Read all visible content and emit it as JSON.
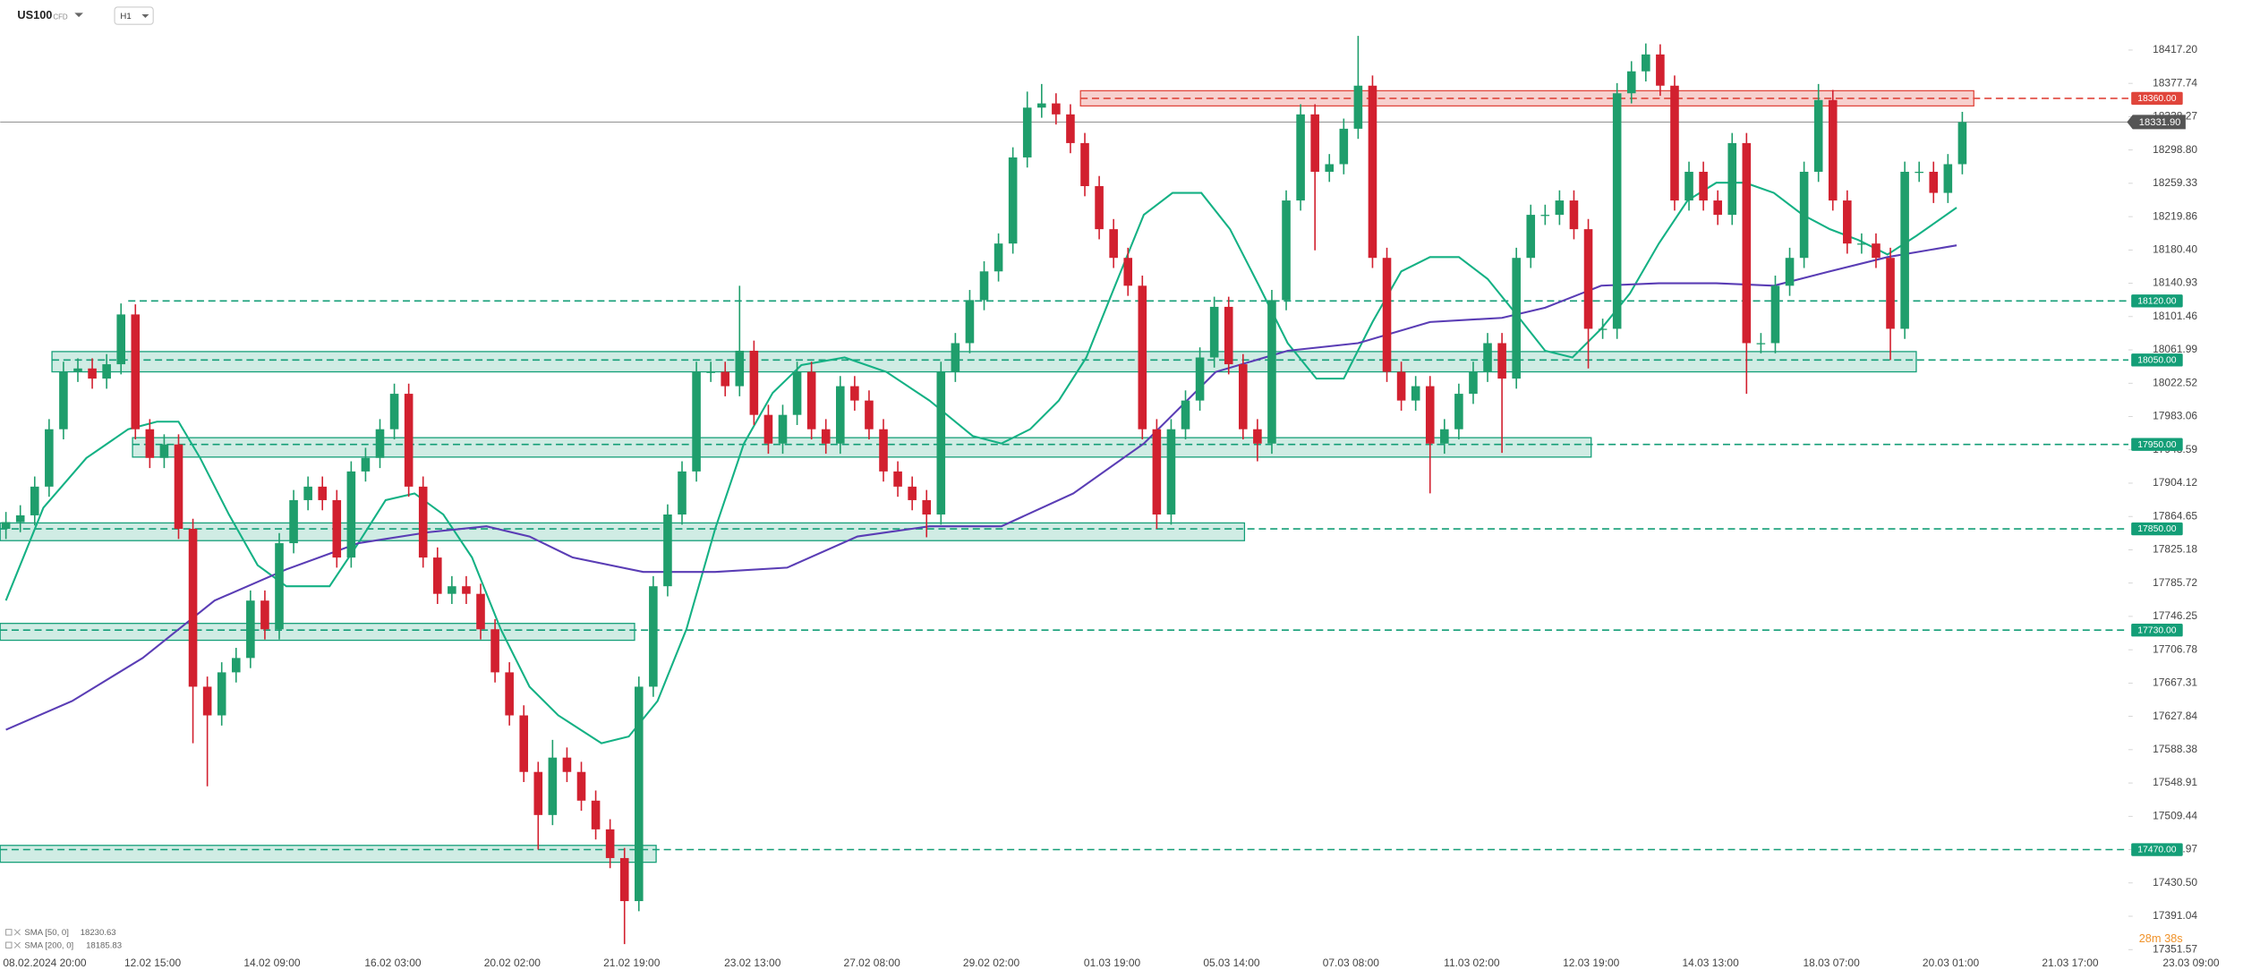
{
  "header": {
    "symbol": "US100",
    "instrument_type": "CFD",
    "timeframe": "H1"
  },
  "countdown": "28m 38s",
  "chart_data": {
    "type": "candlestick",
    "up_color": "#1f9e6c",
    "down_color": "#d2202f",
    "xlim": [
      -0.4,
      155.5
    ],
    "ylim": [
      17345,
      18476.5
    ],
    "xticks": [
      {
        "value": 1.9,
        "label": "08.02.2024 20:00"
      },
      {
        "value": 10.2,
        "label": "12.02 15:00"
      },
      {
        "value": 18.5,
        "label": "14.02 09:00"
      },
      {
        "value": 26.9,
        "label": "16.02 03:00"
      },
      {
        "value": 35.2,
        "label": "20.02 02:00"
      },
      {
        "value": 43.5,
        "label": "21.02 19:00"
      },
      {
        "value": 51.9,
        "label": "23.02 13:00"
      },
      {
        "value": 60.2,
        "label": "27.02 08:00"
      },
      {
        "value": 68.5,
        "label": "29.02 02:00"
      },
      {
        "value": 76.9,
        "label": "01.03 19:00"
      },
      {
        "value": 85.2,
        "label": "05.03 14:00"
      },
      {
        "value": 93.5,
        "label": "07.03 08:00"
      },
      {
        "value": 101.9,
        "label": "11.03 02:00"
      },
      {
        "value": 110.2,
        "label": "12.03 19:00"
      },
      {
        "value": 118.5,
        "label": "14.03 13:00"
      },
      {
        "value": 126.9,
        "label": "18.03 07:00"
      },
      {
        "value": 135.2,
        "label": "20.03 01:00"
      },
      {
        "value": 143.5,
        "label": "21.03 17:00"
      },
      {
        "value": 151.9,
        "label": "23.03 09:00"
      }
    ],
    "yticks": [
      {
        "value": 18417.2,
        "label": "18417.20"
      },
      18377.74,
      18338.27,
      {
        "value": 18298.8,
        "label": "18298.80"
      },
      18259.33,
      18219.86,
      {
        "value": 18180.4,
        "label": "18180.40"
      },
      18140.93,
      18101.46,
      18061.99,
      18022.52,
      17983.06,
      17943.59,
      17904.12,
      17864.65,
      17825.18,
      17785.72,
      17746.25,
      17706.78,
      17667.31,
      17627.84,
      17588.38,
      17548.91,
      17509.44,
      17469.97,
      {
        "value": 17430.5,
        "label": "17430.50"
      },
      17391.04,
      17351.57
    ],
    "open": [
      17850,
      17858,
      17866,
      17900,
      17968,
      18036,
      18040,
      18028,
      18045,
      18104,
      17968,
      17934,
      17950,
      17850,
      17663,
      17629,
      17680,
      17697,
      17765,
      17731,
      17833,
      17884,
      17900,
      17884,
      17816,
      17918,
      17934,
      17968,
      18010,
      17900,
      17816,
      17773,
      17782,
      17773,
      17731,
      17680,
      17629,
      17562,
      17511,
      17579,
      17562,
      17528,
      17494,
      17460,
      17409,
      17663,
      17782,
      17867,
      17918,
      18036,
      18036,
      18019,
      18061,
      17985,
      17951,
      17985,
      18036,
      17968,
      17951,
      18019,
      18002,
      17968,
      17918,
      17900,
      17884,
      17867,
      18036,
      18070,
      18121,
      18155,
      18188,
      18290,
      18349,
      18354,
      18341,
      18307,
      18256,
      18205,
      18171,
      18138,
      17968,
      17867,
      17968,
      18002,
      18053,
      18113,
      18045,
      17968,
      17951,
      18121,
      18239,
      18341,
      18273,
      18282,
      18324,
      18375,
      18171,
      18036,
      18002,
      18019,
      17951,
      17968,
      18010,
      18036,
      18070,
      18028,
      18171,
      18222,
      18222,
      18239,
      18205,
      18087,
      18087,
      18366,
      18392,
      18412,
      18375,
      18239,
      18273,
      18239,
      18222,
      18307,
      18070,
      18070,
      18138,
      18171,
      18273,
      18358,
      18239,
      18188,
      18188,
      18171,
      18087,
      18273,
      18273,
      18248,
      18282
    ],
    "high": [
      17870,
      17878,
      17912,
      17980,
      18048,
      18052,
      18052,
      18057,
      18117,
      18116,
      17980,
      17962,
      17962,
      17862,
      17675,
      17692,
      17709,
      17777,
      17777,
      17845,
      17896,
      17912,
      17912,
      17896,
      17930,
      17946,
      17980,
      18022,
      18022,
      17912,
      17828,
      17794,
      17794,
      17785,
      17743,
      17692,
      17641,
      17574,
      17600,
      17591,
      17574,
      17540,
      17506,
      17472,
      17675,
      17794,
      17879,
      17930,
      18048,
      18048,
      18048,
      18138,
      18073,
      17997,
      17997,
      18048,
      18048,
      17980,
      18031,
      18031,
      18014,
      17980,
      17930,
      17912,
      17896,
      18048,
      18082,
      18133,
      18167,
      18200,
      18302,
      18368,
      18377,
      18366,
      18353,
      18319,
      18268,
      18217,
      18183,
      18150,
      17980,
      17980,
      18014,
      18065,
      18125,
      18125,
      18057,
      17980,
      18133,
      18251,
      18353,
      18353,
      18294,
      18336,
      18434,
      18387,
      18183,
      18048,
      18031,
      18031,
      17980,
      18022,
      18048,
      18082,
      18082,
      18183,
      18234,
      18234,
      18251,
      18251,
      18217,
      18099,
      18378,
      18404,
      18425,
      18424,
      18387,
      18285,
      18285,
      18251,
      18319,
      18319,
      18082,
      18150,
      18183,
      18285,
      18377,
      18370,
      18251,
      18200,
      18200,
      18183,
      18285,
      18285,
      18285,
      18294,
      18344
    ],
    "low": [
      17838,
      17846,
      17854,
      17888,
      17956,
      18024,
      18016,
      18016,
      18033,
      17956,
      17922,
      17922,
      17838,
      17596,
      17545,
      17617,
      17668,
      17685,
      17719,
      17719,
      17821,
      17872,
      17872,
      17804,
      17804,
      17906,
      17922,
      17956,
      17888,
      17804,
      17761,
      17761,
      17761,
      17719,
      17668,
      17617,
      17550,
      17470,
      17499,
      17550,
      17516,
      17482,
      17448,
      17358,
      17397,
      17651,
      17770,
      17855,
      17906,
      18024,
      18007,
      18007,
      17973,
      17939,
      17939,
      17973,
      17956,
      17939,
      17939,
      17990,
      17956,
      17906,
      17888,
      17872,
      17840,
      17855,
      18024,
      18058,
      18109,
      18143,
      18176,
      18278,
      18337,
      18329,
      18295,
      18244,
      18193,
      18159,
      18126,
      17956,
      17850,
      17855,
      17956,
      17990,
      18041,
      18033,
      17956,
      17930,
      17939,
      18109,
      18227,
      18180,
      18261,
      18270,
      18312,
      18159,
      18024,
      17990,
      17990,
      17892,
      17939,
      17956,
      17998,
      18024,
      17940,
      18016,
      18159,
      18210,
      18210,
      18193,
      18040,
      18075,
      18075,
      18354,
      18380,
      18363,
      18227,
      18227,
      18227,
      18210,
      18210,
      18010,
      18058,
      18058,
      18126,
      18159,
      18261,
      18227,
      18176,
      18176,
      18159,
      18050,
      18075,
      18261,
      18236,
      18236,
      18270
    ],
    "close": [
      17858,
      17866,
      17900,
      17968,
      18036,
      18040,
      18028,
      18045,
      18104,
      17968,
      17934,
      17950,
      17850,
      17663,
      17629,
      17680,
      17697,
      17765,
      17731,
      17833,
      17884,
      17900,
      17884,
      17816,
      17918,
      17934,
      17968,
      18010,
      17900,
      17816,
      17773,
      17782,
      17773,
      17731,
      17680,
      17629,
      17562,
      17511,
      17579,
      17562,
      17528,
      17494,
      17460,
      17409,
      17663,
      17782,
      17867,
      17918,
      18036,
      18036,
      18019,
      18061,
      17985,
      17951,
      17985,
      18036,
      17968,
      17951,
      18019,
      18002,
      17968,
      17918,
      17900,
      17884,
      17867,
      18036,
      18070,
      18121,
      18155,
      18188,
      18290,
      18349,
      18354,
      18341,
      18307,
      18256,
      18205,
      18171,
      18138,
      17968,
      17867,
      17968,
      18002,
      18053,
      18113,
      18045,
      17968,
      17951,
      18121,
      18239,
      18341,
      18273,
      18282,
      18324,
      18375,
      18171,
      18036,
      18002,
      18019,
      17951,
      17968,
      18010,
      18036,
      18070,
      18028,
      18171,
      18222,
      18222,
      18239,
      18205,
      18087,
      18087,
      18366,
      18392,
      18412,
      18375,
      18239,
      18273,
      18239,
      18222,
      18307,
      18070,
      18070,
      18138,
      18171,
      18273,
      18358,
      18239,
      18188,
      18188,
      18171,
      18087,
      18273,
      18273,
      18248,
      18282,
      18331.9
    ],
    "series": [
      {
        "name": "SMA [50, 0]",
        "last": 18230.63,
        "color": "#14b184",
        "x": [
          0,
          2.6,
          5.6,
          8.5,
          10.5,
          12,
          13.5,
          15.5,
          17.5,
          19.5,
          22.5,
          24.5,
          26.4,
          28.4,
          30.4,
          32.4,
          34.4,
          36.4,
          38.4,
          41.4,
          43.3,
          45.3,
          47.3,
          49.3,
          51.3,
          53.3,
          55.3,
          58.3,
          61.2,
          64.2,
          67.2,
          69.2,
          71.2,
          73.2,
          75.1,
          77.1,
          79.1,
          81.1,
          83.1,
          85.1,
          87.1,
          89.1,
          91.1,
          93,
          95,
          97,
          99,
          101,
          103,
          105,
          107,
          108.9,
          110.9,
          112.9,
          114.9,
          116.9,
          118.9,
          120.9,
          122.9,
          124.9,
          126.8,
          128.8,
          130.8,
          132.8,
          135.6
        ],
        "values": [
          17765,
          17875,
          17934,
          17968,
          17977,
          17977,
          17934,
          17867,
          17807,
          17782,
          17782,
          17833,
          17884,
          17892,
          17867,
          17816,
          17731,
          17663,
          17629,
          17596,
          17604,
          17646,
          17731,
          17850,
          17951,
          18011,
          18044,
          18053,
          18036,
          18002,
          17960,
          17951,
          17968,
          18002,
          18053,
          18138,
          18222,
          18248,
          18248,
          18205,
          18138,
          18070,
          18028,
          18028,
          18095,
          18155,
          18172,
          18172,
          18146,
          18104,
          18061,
          18053,
          18087,
          18129,
          18188,
          18239,
          18260,
          18260,
          18248,
          18222,
          18205,
          18192,
          18175,
          18197,
          18230.63
        ]
      },
      {
        "name": "SMA [200, 0]",
        "last": 18185.83,
        "color": "#5a3db5",
        "x": [
          0,
          4.6,
          9.5,
          14.5,
          19.5,
          24.5,
          29.4,
          33.4,
          36.4,
          39.4,
          44.3,
          49.3,
          54.3,
          59.2,
          64.2,
          69.2,
          74.2,
          79.1,
          84.1,
          89.1,
          94,
          99,
          104,
          107,
          110.9,
          114.9,
          118.9,
          122.9,
          126.8,
          130.8,
          135.6
        ],
        "values": [
          17612,
          17646,
          17697,
          17765,
          17802,
          17833,
          17846,
          17853,
          17841,
          17816,
          17799,
          17799,
          17804,
          17841,
          17853,
          17853,
          17892,
          17951,
          18036,
          18061,
          18070,
          18095,
          18100,
          18112,
          18138,
          18141,
          18141,
          18138,
          18155,
          18172,
          18185.83
        ]
      }
    ],
    "levels": [
      {
        "value": 18360,
        "label": "18360.00",
        "color": "#e0453b",
        "start": 74.7,
        "zone": [
          18351,
          18369
        ],
        "zone_end": 136.8
      },
      {
        "value": 18120,
        "label": "18120.00",
        "color": "#139e77",
        "start": 8.5
      },
      {
        "value": 18050,
        "label": "18050.00",
        "color": "#139e77",
        "start": 3.2,
        "zone": [
          18036,
          18060
        ],
        "zone_end": 132.8
      },
      {
        "value": 17950,
        "label": "17950.00",
        "color": "#139e77",
        "start": 8.8,
        "zone": [
          17935,
          17958
        ],
        "zone_end": 110.2
      },
      {
        "value": 17850,
        "label": "17850.00",
        "color": "#139e77",
        "start": -0.4,
        "zone": [
          17836,
          17857
        ],
        "zone_end": 86.1
      },
      {
        "value": 17730,
        "label": "17730.00",
        "color": "#139e77",
        "start": -0.4,
        "zone": [
          17718,
          17738
        ],
        "zone_end": 43.7
      },
      {
        "value": 17470,
        "label": "17470.00",
        "color": "#139e77",
        "start": -0.4,
        "zone": [
          17455,
          17475
        ],
        "zone_end": 45.2
      }
    ],
    "last_price": {
      "value": 18331.9,
      "label": "18331.90"
    }
  }
}
